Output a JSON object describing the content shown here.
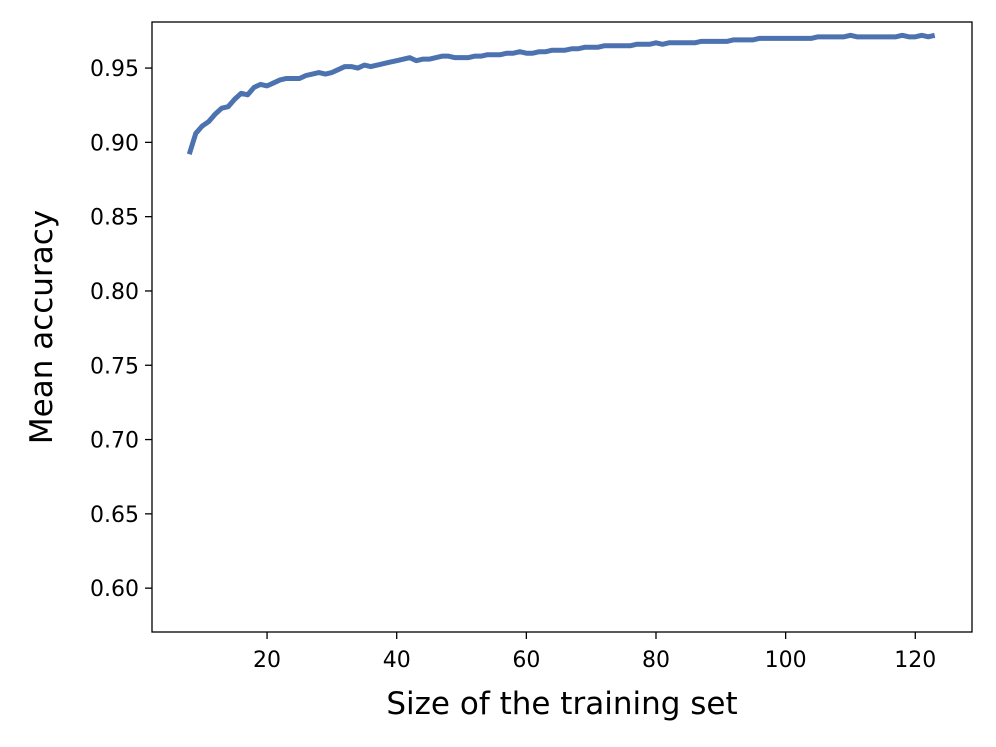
{
  "chart_data": {
    "type": "line",
    "title": "",
    "xlabel": "Size of the training set",
    "ylabel": "Mean accuracy",
    "xlim": [
      2.25,
      128.75
    ],
    "ylim": [
      0.5705,
      0.981
    ],
    "xticks": [
      20,
      40,
      60,
      80,
      100,
      120
    ],
    "yticks": [
      0.6,
      0.65,
      0.7,
      0.75,
      0.8,
      0.85,
      0.9,
      0.95
    ],
    "xtick_labels": [
      "20",
      "40",
      "60",
      "80",
      "100",
      "120"
    ],
    "ytick_labels": [
      "0.60",
      "0.65",
      "0.70",
      "0.75",
      "0.80",
      "0.85",
      "0.90",
      "0.95"
    ],
    "grid": false,
    "legend": "none",
    "series": [
      {
        "color": "#4c72b0",
        "x": [
          8,
          9,
          10,
          11,
          12,
          13,
          14,
          15,
          16,
          17,
          18,
          19,
          20,
          21,
          22,
          23,
          24,
          25,
          26,
          27,
          28,
          29,
          30,
          31,
          32,
          33,
          34,
          35,
          36,
          37,
          38,
          39,
          40,
          41,
          42,
          43,
          44,
          45,
          46,
          47,
          48,
          49,
          50,
          51,
          52,
          53,
          54,
          55,
          56,
          57,
          58,
          59,
          60,
          61,
          62,
          63,
          64,
          65,
          66,
          67,
          68,
          69,
          70,
          71,
          72,
          73,
          74,
          75,
          76,
          77,
          78,
          79,
          80,
          81,
          82,
          83,
          84,
          85,
          86,
          87,
          88,
          89,
          90,
          91,
          92,
          93,
          94,
          95,
          96,
          97,
          98,
          99,
          100,
          101,
          102,
          103,
          104,
          105,
          106,
          107,
          108,
          109,
          110,
          111,
          112,
          113,
          114,
          115,
          116,
          117,
          118,
          119,
          120,
          121,
          122,
          123
        ],
        "values": [
          0.892,
          0.906,
          0.911,
          0.914,
          0.919,
          0.923,
          0.924,
          0.929,
          0.933,
          0.932,
          0.937,
          0.939,
          0.938,
          0.94,
          0.942,
          0.943,
          0.943,
          0.943,
          0.945,
          0.946,
          0.947,
          0.946,
          0.947,
          0.949,
          0.951,
          0.951,
          0.95,
          0.952,
          0.951,
          0.952,
          0.953,
          0.954,
          0.955,
          0.956,
          0.957,
          0.955,
          0.956,
          0.956,
          0.957,
          0.958,
          0.958,
          0.957,
          0.957,
          0.957,
          0.958,
          0.958,
          0.959,
          0.959,
          0.959,
          0.96,
          0.96,
          0.961,
          0.96,
          0.96,
          0.961,
          0.961,
          0.962,
          0.962,
          0.962,
          0.963,
          0.963,
          0.964,
          0.964,
          0.964,
          0.965,
          0.965,
          0.965,
          0.965,
          0.965,
          0.966,
          0.966,
          0.966,
          0.967,
          0.966,
          0.967,
          0.967,
          0.967,
          0.967,
          0.967,
          0.968,
          0.968,
          0.968,
          0.968,
          0.968,
          0.969,
          0.969,
          0.969,
          0.969,
          0.97,
          0.97,
          0.97,
          0.97,
          0.97,
          0.97,
          0.97,
          0.97,
          0.97,
          0.971,
          0.971,
          0.971,
          0.971,
          0.971,
          0.972,
          0.971,
          0.971,
          0.971,
          0.971,
          0.971,
          0.971,
          0.971,
          0.972,
          0.971,
          0.971,
          0.972,
          0.971,
          0.972
        ]
      }
    ]
  }
}
